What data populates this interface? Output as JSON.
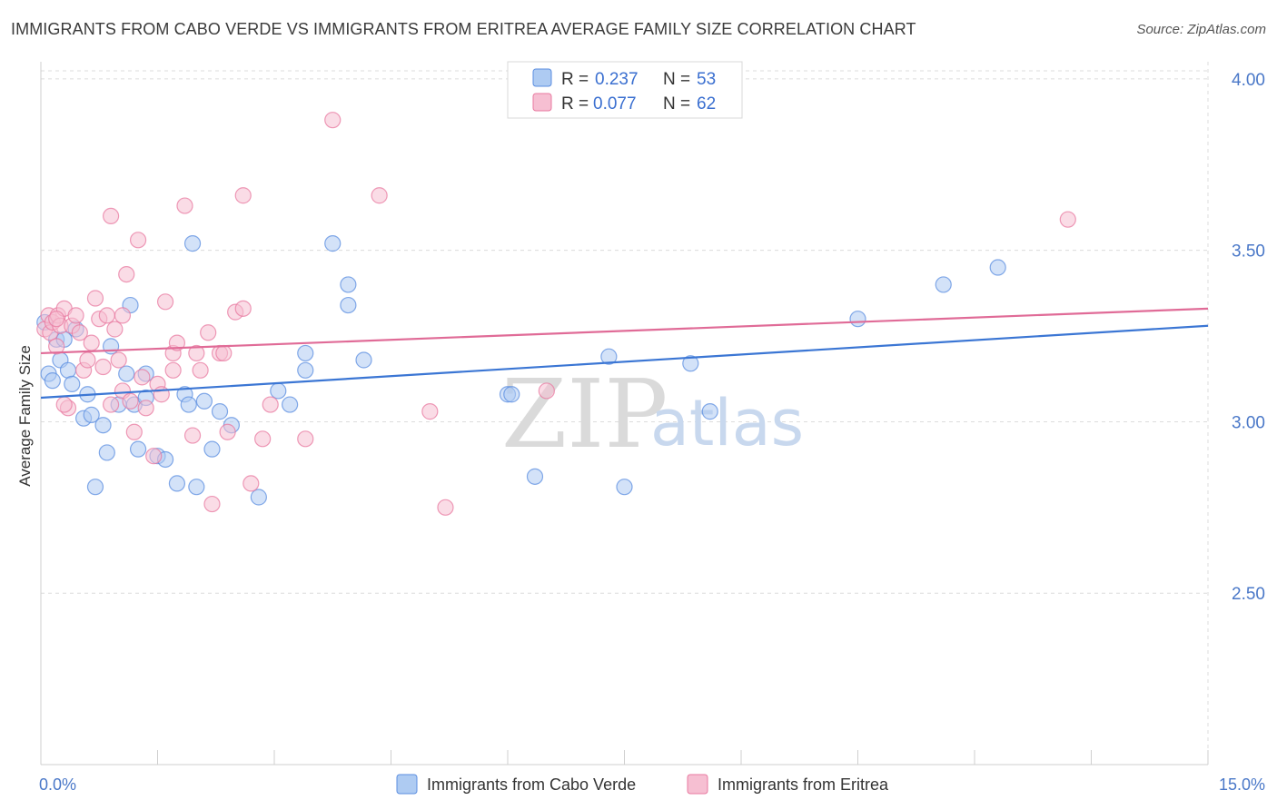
{
  "header": {
    "title": "IMMIGRANTS FROM CABO VERDE VS IMMIGRANTS FROM ERITREA AVERAGE FAMILY SIZE CORRELATION CHART",
    "source": "Source: ZipAtlas.com"
  },
  "watermark": {
    "zip": "ZIP",
    "atlas": "atlas"
  },
  "legend": {
    "rows": [
      {
        "r_label": "R = ",
        "r_value": "0.237",
        "n_label": "N = ",
        "n_value": "53"
      },
      {
        "r_label": "R = ",
        "r_value": "0.077",
        "n_label": "N = ",
        "n_value": "62"
      }
    ]
  },
  "chart_data": {
    "type": "scatter",
    "title": "IMMIGRANTS FROM CABO VERDE VS IMMIGRANTS FROM ERITREA AVERAGE FAMILY SIZE CORRELATION CHART",
    "xlabel": "",
    "ylabel": "Average Family Size",
    "xlim": [
      0,
      15
    ],
    "ylim": [
      2.0,
      4.05
    ],
    "x_tick_labels": [
      "0.0%",
      "15.0%"
    ],
    "x_tick_values": [
      0,
      15
    ],
    "y_ticks": [
      {
        "value": 2.5,
        "label": "2.50"
      },
      {
        "value": 3.0,
        "label": "3.00"
      },
      {
        "value": 3.5,
        "label": "3.50"
      },
      {
        "value": 4.0,
        "label": "4.00"
      }
    ],
    "grid": true,
    "series": [
      {
        "name": "Immigrants from Cabo Verde",
        "color": "#5b8ee0",
        "fill": "#aecbf2",
        "trend": {
          "x": [
            0,
            15
          ],
          "y": [
            3.07,
            3.28
          ]
        },
        "points": [
          [
            0.05,
            3.29
          ],
          [
            0.1,
            3.14
          ],
          [
            0.15,
            3.12
          ],
          [
            0.2,
            3.24
          ],
          [
            0.25,
            3.18
          ],
          [
            0.3,
            3.24
          ],
          [
            0.35,
            3.15
          ],
          [
            0.4,
            3.11
          ],
          [
            0.45,
            3.27
          ],
          [
            0.55,
            3.01
          ],
          [
            0.6,
            3.08
          ],
          [
            0.65,
            3.02
          ],
          [
            0.7,
            2.81
          ],
          [
            0.8,
            2.99
          ],
          [
            0.85,
            2.91
          ],
          [
            0.9,
            3.22
          ],
          [
            1.0,
            3.05
          ],
          [
            1.1,
            3.14
          ],
          [
            1.15,
            3.34
          ],
          [
            1.2,
            3.05
          ],
          [
            1.25,
            2.92
          ],
          [
            1.35,
            3.14
          ],
          [
            1.35,
            3.07
          ],
          [
            1.5,
            2.9
          ],
          [
            1.6,
            2.89
          ],
          [
            1.75,
            2.82
          ],
          [
            1.85,
            3.08
          ],
          [
            1.9,
            3.05
          ],
          [
            1.95,
            3.52
          ],
          [
            2.0,
            2.81
          ],
          [
            2.1,
            3.06
          ],
          [
            2.2,
            2.92
          ],
          [
            2.3,
            3.03
          ],
          [
            2.45,
            2.99
          ],
          [
            2.8,
            2.78
          ],
          [
            3.05,
            3.09
          ],
          [
            3.2,
            3.05
          ],
          [
            3.4,
            3.2
          ],
          [
            3.4,
            3.15
          ],
          [
            3.75,
            3.52
          ],
          [
            3.95,
            3.34
          ],
          [
            3.95,
            3.4
          ],
          [
            4.15,
            3.18
          ],
          [
            6.0,
            3.08
          ],
          [
            6.05,
            3.08
          ],
          [
            6.35,
            2.84
          ],
          [
            7.3,
            3.19
          ],
          [
            7.5,
            2.81
          ],
          [
            8.35,
            3.17
          ],
          [
            8.6,
            3.03
          ],
          [
            10.5,
            3.3
          ],
          [
            11.6,
            3.4
          ],
          [
            12.3,
            3.45
          ]
        ]
      },
      {
        "name": "Immigrants from Eritrea",
        "color": "#e87aa0",
        "fill": "#f6bfd2",
        "trend": {
          "x": [
            0,
            15
          ],
          "y": [
            3.2,
            3.33
          ]
        },
        "points": [
          [
            0.05,
            3.27
          ],
          [
            0.1,
            3.31
          ],
          [
            0.12,
            3.26
          ],
          [
            0.15,
            3.29
          ],
          [
            0.2,
            3.22
          ],
          [
            0.22,
            3.31
          ],
          [
            0.25,
            3.28
          ],
          [
            0.3,
            3.33
          ],
          [
            0.35,
            3.04
          ],
          [
            0.4,
            3.28
          ],
          [
            0.45,
            3.31
          ],
          [
            0.5,
            3.26
          ],
          [
            0.55,
            3.15
          ],
          [
            0.6,
            3.18
          ],
          [
            0.65,
            3.23
          ],
          [
            0.7,
            3.36
          ],
          [
            0.75,
            3.3
          ],
          [
            0.8,
            3.16
          ],
          [
            0.85,
            3.31
          ],
          [
            0.9,
            3.6
          ],
          [
            0.95,
            3.27
          ],
          [
            1.0,
            3.18
          ],
          [
            1.05,
            3.09
          ],
          [
            1.1,
            3.43
          ],
          [
            1.15,
            3.06
          ],
          [
            1.2,
            2.97
          ],
          [
            1.25,
            3.53
          ],
          [
            1.3,
            3.13
          ],
          [
            1.35,
            3.04
          ],
          [
            1.45,
            2.9
          ],
          [
            1.5,
            3.11
          ],
          [
            1.55,
            3.08
          ],
          [
            1.6,
            3.35
          ],
          [
            1.7,
            3.2
          ],
          [
            1.75,
            3.23
          ],
          [
            1.85,
            3.63
          ],
          [
            1.95,
            2.96
          ],
          [
            2.0,
            3.2
          ],
          [
            2.05,
            3.15
          ],
          [
            2.15,
            3.26
          ],
          [
            2.2,
            2.76
          ],
          [
            2.3,
            3.2
          ],
          [
            2.4,
            2.97
          ],
          [
            2.5,
            3.32
          ],
          [
            2.6,
            3.33
          ],
          [
            2.6,
            3.66
          ],
          [
            2.7,
            2.82
          ],
          [
            2.85,
            2.95
          ],
          [
            2.95,
            3.05
          ],
          [
            3.4,
            2.95
          ],
          [
            3.75,
            3.88
          ],
          [
            4.35,
            3.66
          ],
          [
            5.0,
            3.03
          ],
          [
            5.2,
            2.75
          ],
          [
            6.5,
            3.09
          ],
          [
            13.2,
            3.59
          ],
          [
            0.3,
            3.05
          ],
          [
            0.9,
            3.05
          ],
          [
            1.7,
            3.15
          ],
          [
            0.2,
            3.3
          ],
          [
            2.35,
            3.2
          ],
          [
            1.05,
            3.31
          ]
        ]
      }
    ]
  }
}
